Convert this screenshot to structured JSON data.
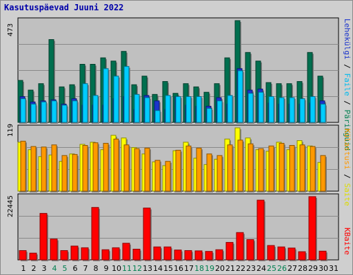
{
  "title": "Kasutuspäevad Juuni 2022",
  "colors": {
    "background": "#cfcfcf",
    "panel": "#c0c0c0",
    "hits": "#006f4f",
    "files": "#00ccff",
    "pages": "#1a33cc",
    "visits": "#ff9900",
    "sites": "#ffff00",
    "kbytes": "#ff0000",
    "title": "#0000aa",
    "weekend_label": "#007f4f"
  },
  "side_labels": {
    "top": {
      "pages": "Lehekülgi",
      "files": "Faile",
      "hits": "Päringuid",
      "sep": " / "
    },
    "middle": {
      "visits": "Külastusi",
      "sites": "Saite",
      "sep": " / "
    },
    "bottom": {
      "kbytes": "KBaite"
    }
  },
  "chart_data": {
    "type": "bar",
    "days": [
      "1",
      "2",
      "3",
      "4",
      "5",
      "6",
      "7",
      "8",
      "9",
      "10",
      "11",
      "12",
      "13",
      "14",
      "15",
      "16",
      "17",
      "18",
      "19",
      "20",
      "21",
      "22",
      "23",
      "24",
      "25",
      "26",
      "27",
      "28",
      "29",
      "30",
      "31"
    ],
    "weekend_days": [
      "4",
      "5",
      "11",
      "12",
      "18",
      "19",
      "25",
      "26"
    ],
    "panels": [
      {
        "name": "top",
        "ymax_label": "473",
        "ymax": 473,
        "series": [
          {
            "name": "Päringuid",
            "values": [
              195,
              150,
              180,
              385,
              165,
              175,
              270,
              270,
              300,
              285,
              330,
              175,
              215,
              130,
              190,
              135,
              180,
              165,
              140,
              180,
              300,
              473,
              325,
              285,
              185,
              180,
              180,
              190,
              325,
              215,
              0
            ]
          },
          {
            "name": "Faile",
            "values": [
              110,
              85,
              95,
              100,
              80,
              100,
              180,
              125,
              250,
              215,
              260,
              130,
              115,
              55,
              125,
              120,
              120,
              120,
              65,
              100,
              125,
              240,
              135,
              140,
              120,
              115,
              115,
              110,
              120,
              85,
              0
            ]
          },
          {
            "name": "Lehekülgi",
            "values": [
              120,
              95,
              100,
              105,
              85,
              110,
              80,
              80,
              80,
              110,
              120,
              60,
              125,
              100,
              60,
              120,
              80,
              75,
              75,
              115,
              85,
              250,
              150,
              155,
              90,
              85,
              85,
              85,
              90,
              100,
              0
            ]
          }
        ]
      },
      {
        "name": "middle",
        "ymax_label": "119",
        "ymax": 119,
        "series": [
          {
            "name": "Saite",
            "values": [
              92,
              78,
              65,
              68,
              56,
              70,
              88,
              92,
              78,
              105,
              100,
              82,
              70,
              55,
              48,
              76,
              92,
              62,
              50,
              60,
              98,
              119,
              100,
              78,
              75,
              92,
              78,
              95,
              85,
              54,
              0
            ]
          },
          {
            "name": "Külastusi",
            "values": [
              94,
              84,
              83,
              87,
              67,
              69,
              86,
              91,
              90,
              98,
              87,
              80,
              81,
              58,
              56,
              77,
              85,
              81,
              70,
              67,
              87,
              96,
              89,
              80,
              85,
              90,
              86,
              87,
              84,
              67,
              0
            ]
          }
        ]
      },
      {
        "name": "bottom",
        "ymax_label": "22445",
        "ymax": 22445,
        "series": [
          {
            "name": "KBaite",
            "values": [
              3300,
              2400,
              16500,
              7400,
              3300,
              4900,
              4300,
              18600,
              3600,
              4300,
              5900,
              3800,
              18400,
              4600,
              4600,
              3500,
              3300,
              3200,
              3000,
              3600,
              6200,
              9700,
              7200,
              21200,
              5100,
              4600,
              4200,
              2900,
              22445,
              3100,
              0
            ]
          }
        ]
      }
    ]
  }
}
